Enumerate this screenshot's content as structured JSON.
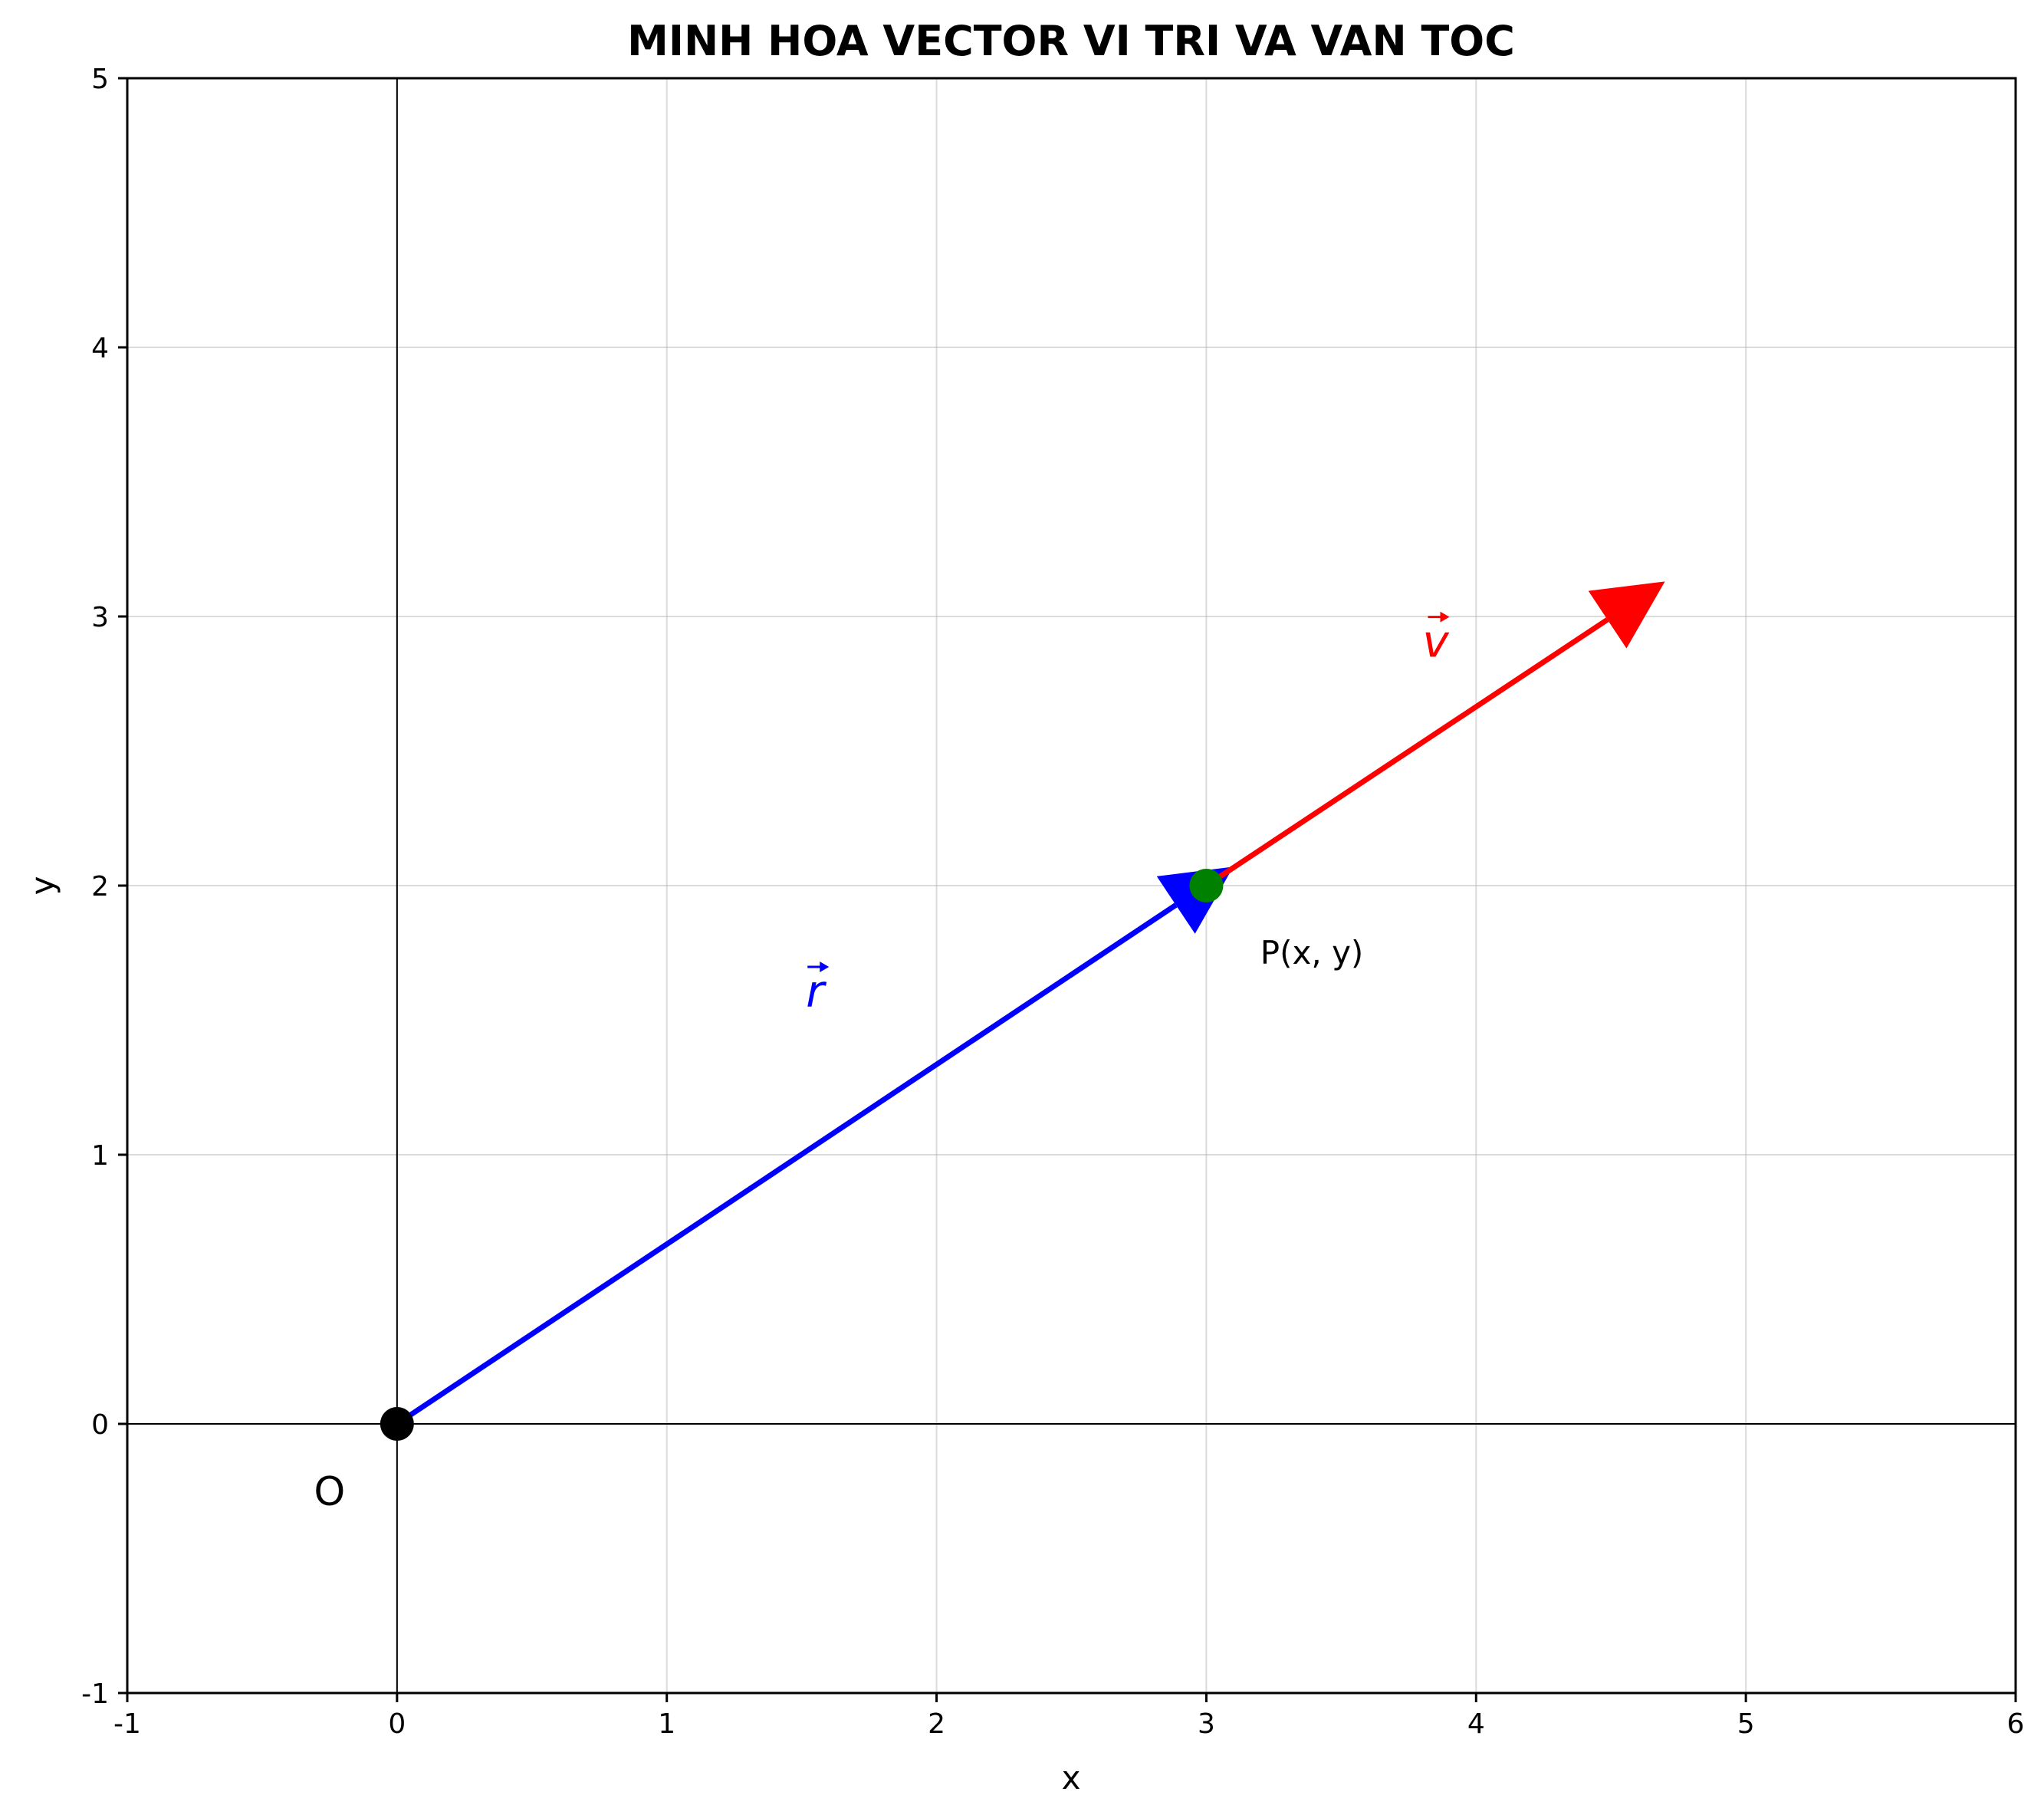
{
  "chart_data": {
    "type": "vector_diagram",
    "title": "MINH HOA VECTOR VI TRI VA VAN TOC",
    "xlabel": "x",
    "ylabel": "y",
    "xlim": [
      -1,
      6
    ],
    "ylim": [
      -1,
      5
    ],
    "xticks": [
      -1,
      0,
      1,
      2,
      3,
      4,
      5,
      6
    ],
    "yticks": [
      -1,
      0,
      1,
      2,
      3,
      4,
      5
    ],
    "grid": true,
    "reference_lines": {
      "x": 0,
      "y": 0
    },
    "points": [
      {
        "name": "origin",
        "x": 0,
        "y": 0,
        "color": "#000000",
        "label": "O",
        "label_x": -0.25,
        "label_y": -0.25
      },
      {
        "name": "point-p",
        "x": 3,
        "y": 2,
        "color": "#008000",
        "label": "P(x, y)",
        "label_x": 3.2,
        "label_y": 1.75
      }
    ],
    "vectors": [
      {
        "name": "position-vector",
        "from": [
          0,
          0
        ],
        "to": [
          3.1,
          2.07
        ],
        "color": "#0000ff",
        "label": "r",
        "label_x": 1.55,
        "label_y": 1.55
      },
      {
        "name": "velocity-vector",
        "from": [
          3,
          2
        ],
        "to": [
          4.7,
          3.13
        ],
        "color": "#ff0000",
        "label": "v",
        "label_x": 3.85,
        "label_y": 2.85
      }
    ]
  }
}
